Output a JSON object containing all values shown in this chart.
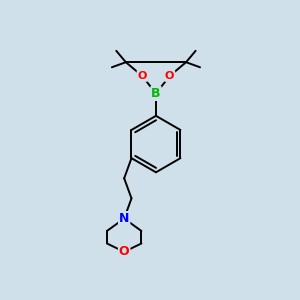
{
  "background_color": "#cfe0ea",
  "bond_color": "#000000",
  "bond_width": 1.4,
  "atom_colors": {
    "B": "#00bb00",
    "O": "#ff0000",
    "N": "#0000ff",
    "C": "#000000"
  },
  "figsize": [
    3.0,
    3.0
  ],
  "dpi": 100
}
